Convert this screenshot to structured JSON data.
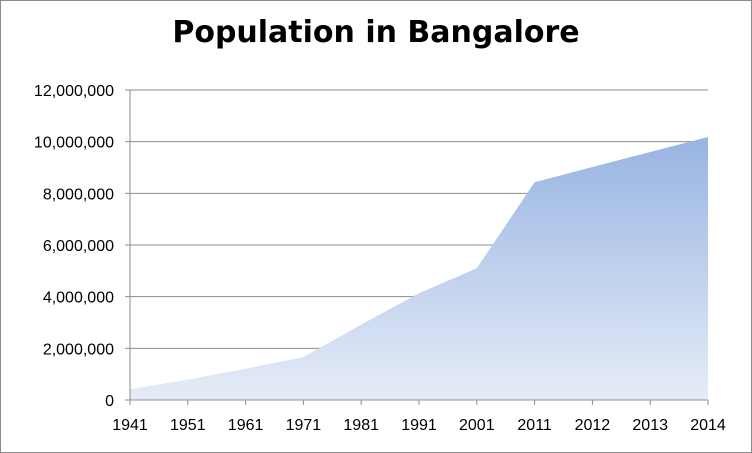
{
  "chart_data": {
    "type": "area",
    "title": "Population in Bangalore",
    "xlabel": "",
    "ylabel": "",
    "categories": [
      "1941",
      "1951",
      "1961",
      "1971",
      "1981",
      "1991",
      "2001",
      "2011",
      "2012",
      "2013",
      "2014"
    ],
    "series": [
      {
        "values": [
          410000,
          790000,
          1210000,
          1660000,
          2920000,
          4130000,
          5100000,
          8430000,
          9020000,
          9600000,
          10180000
        ]
      }
    ],
    "ylim": [
      0,
      12000000
    ],
    "yticks": [
      0,
      2000000,
      4000000,
      6000000,
      8000000,
      10000000,
      12000000
    ],
    "ytick_labels": [
      "0",
      "2,000,000",
      "4,000,000",
      "6,000,000",
      "8,000,000",
      "10,000,000",
      "12,000,000"
    ],
    "grid": "horizontal",
    "legend": "none",
    "colors": {
      "fill_top": "#98b4e2",
      "fill_bottom": "#e6ecf7",
      "grid": "#8c8c8c",
      "axis": "#8c8c8c"
    }
  }
}
